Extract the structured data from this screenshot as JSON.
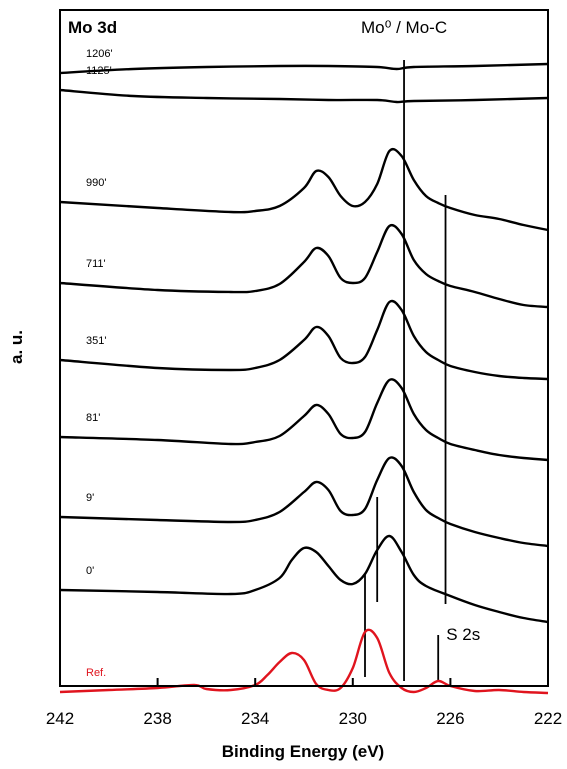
{
  "chart_data": {
    "type": "line",
    "title": "Mo 3d",
    "xlabel": "Binding Energy (eV)",
    "ylabel": "a. u.",
    "xlim": [
      242,
      222
    ],
    "x_reversed": true,
    "x_ticks": [
      "242",
      "238",
      "234",
      "230",
      "226",
      "222"
    ],
    "grid": false,
    "annotations": [
      {
        "text": "Mo⁰ / Mo-C",
        "x": 227.9
      },
      {
        "text": "S 2s",
        "x": 226.5
      }
    ],
    "reference_lines_x": [
      227.9,
      226.2,
      229.0,
      229.5,
      226.5
    ],
    "series": [
      {
        "name": "1206'",
        "color": "#000000",
        "x": [
          242,
          239,
          236,
          233,
          231,
          229,
          228.2,
          227.5,
          225,
          222
        ],
        "y": [
          73,
          69,
          67,
          66,
          66,
          67,
          69,
          67,
          66,
          64
        ]
      },
      {
        "name": "1125'",
        "color": "#000000",
        "x": [
          242,
          239,
          236,
          233,
          231,
          229,
          228.2,
          227.5,
          225,
          222
        ],
        "y": [
          90,
          96,
          98,
          99,
          100,
          100,
          102,
          101,
          100,
          98
        ]
      },
      {
        "name": "990'",
        "color": "#000000",
        "x": [
          242,
          238,
          235,
          234,
          233,
          232,
          231.5,
          231,
          230.5,
          230,
          229.5,
          229,
          228.5,
          228,
          227.5,
          227,
          226.5,
          226,
          225,
          224,
          223,
          222
        ],
        "y": [
          202,
          208,
          212,
          211,
          206,
          188,
          171,
          177,
          196,
          206,
          202,
          184,
          151,
          156,
          180,
          196,
          203,
          208,
          215,
          219,
          225,
          230
        ]
      },
      {
        "name": "711'",
        "color": "#000000",
        "x": [
          242,
          238,
          235,
          234,
          233,
          232,
          231.5,
          231,
          230.5,
          230,
          229.5,
          229,
          228.5,
          228,
          227.5,
          227,
          226.5,
          226,
          225,
          224,
          223,
          222
        ],
        "y": [
          283,
          290,
          292,
          291,
          284,
          262,
          248,
          256,
          278,
          283,
          278,
          252,
          226,
          234,
          260,
          274,
          281,
          286,
          292,
          299,
          305,
          307
        ]
      },
      {
        "name": "351'",
        "color": "#000000",
        "x": [
          242,
          238,
          235,
          234,
          233,
          232,
          231.5,
          231,
          230.5,
          230,
          229.5,
          229,
          228.5,
          228,
          227.5,
          227,
          226.5,
          226,
          225,
          224,
          223,
          222
        ],
        "y": [
          360,
          368,
          370,
          368,
          360,
          340,
          327,
          336,
          358,
          363,
          357,
          330,
          302,
          310,
          336,
          352,
          360,
          366,
          372,
          376,
          378,
          379
        ]
      },
      {
        "name": "81'",
        "color": "#000000",
        "x": [
          242,
          238,
          235,
          234,
          233,
          232,
          231.5,
          231,
          230.5,
          230,
          229.5,
          229,
          228.5,
          228,
          227.5,
          227,
          226.5,
          226,
          225,
          224,
          223,
          222
        ],
        "y": [
          437,
          440,
          444,
          442,
          436,
          416,
          405,
          414,
          434,
          438,
          432,
          403,
          380,
          388,
          414,
          430,
          438,
          444,
          450,
          455,
          458,
          460
        ]
      },
      {
        "name": "9'",
        "color": "#000000",
        "x": [
          242,
          238,
          235,
          234,
          233,
          232,
          231.5,
          231,
          230.5,
          230,
          229.5,
          229,
          228.5,
          228,
          227.5,
          227,
          226.5,
          226,
          225,
          224,
          223,
          222
        ],
        "y": [
          517,
          520,
          522,
          520,
          512,
          492,
          482,
          490,
          511,
          515,
          509,
          480,
          458,
          466,
          492,
          510,
          518,
          524,
          532,
          538,
          543,
          546
        ]
      },
      {
        "name": "0'",
        "color": "#000000",
        "x": [
          242,
          238,
          235,
          234,
          233,
          232.5,
          232,
          231.5,
          231,
          230.5,
          230,
          229.5,
          229,
          228.5,
          228,
          227.5,
          227,
          226,
          225,
          224,
          223,
          222
        ],
        "y": [
          590,
          592,
          594,
          590,
          578,
          560,
          548,
          552,
          566,
          580,
          584,
          574,
          550,
          536,
          552,
          575,
          586,
          596,
          605,
          612,
          618,
          622
        ]
      },
      {
        "name": "Ref.",
        "color": "#e0141e",
        "x": [
          242,
          240,
          238,
          236.5,
          236,
          235,
          234,
          233.5,
          233,
          232.5,
          232,
          231.5,
          231,
          230.5,
          230,
          229.5,
          229,
          228.5,
          228,
          227.5,
          227,
          226.5,
          226,
          225,
          224,
          223,
          222
        ],
        "y": [
          692,
          690,
          688,
          685,
          689,
          690,
          685,
          675,
          662,
          653,
          660,
          684,
          690,
          688,
          668,
          632,
          638,
          673,
          688,
          692,
          688,
          681,
          686,
          691,
          690,
          692,
          693
        ]
      }
    ]
  }
}
